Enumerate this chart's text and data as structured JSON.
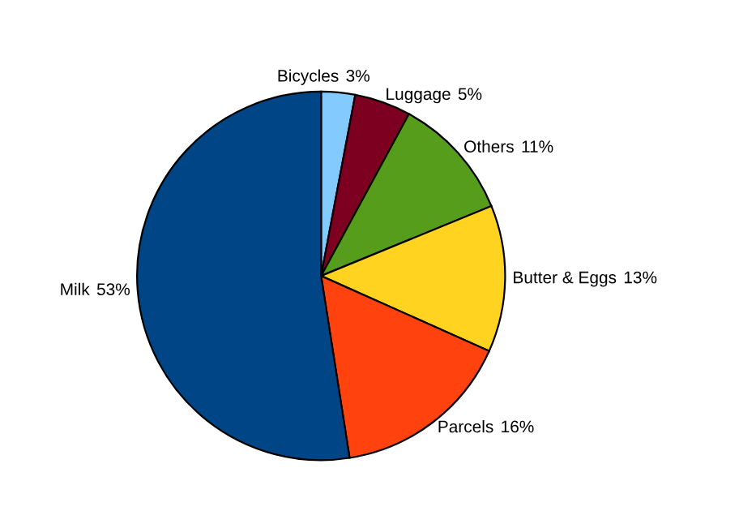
{
  "chart_data": {
    "type": "pie",
    "categories": [
      "Bicycles",
      "Luggage",
      "Others",
      "Butter & Eggs",
      "Parcels",
      "Milk"
    ],
    "values": [
      3,
      5,
      11,
      13,
      16,
      53
    ],
    "colors": [
      "#83caff",
      "#7e0021",
      "#579d1c",
      "#ffd320",
      "#ff420e",
      "#004586"
    ],
    "value_labels": [
      "3%",
      "5%",
      "11%",
      "13%",
      "16%",
      "53%"
    ]
  }
}
